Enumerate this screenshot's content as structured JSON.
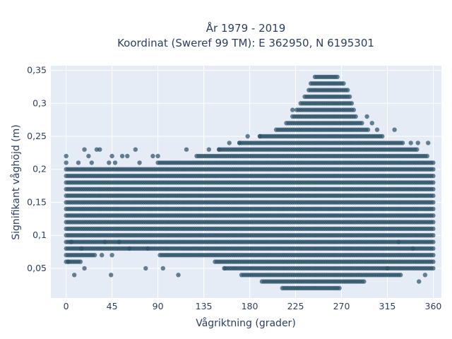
{
  "chart_data": {
    "type": "scatter",
    "title": "År 1979 - 2019",
    "subtitle": "Koordinat (Sweref 99 TM): E 362950, N 6195301",
    "xlabel": "Vågriktning (grader)",
    "ylabel": "Signifikant våghöjd (m)",
    "xlim": [
      -15,
      368
    ],
    "ylim": [
      0.005,
      0.357
    ],
    "xticks": [
      0,
      45,
      90,
      135,
      180,
      225,
      270,
      315,
      360
    ],
    "xtick_labels": [
      "0",
      "45",
      "90",
      "135",
      "180",
      "225",
      "270",
      "315",
      "360"
    ],
    "yticks": [
      0.05,
      0.1,
      0.15,
      0.2,
      0.25,
      0.3,
      0.35
    ],
    "ytick_labels": [
      "0,05",
      "0,1",
      "0,15",
      "0,2",
      "0,25",
      "0,3",
      "0,35"
    ],
    "grid": true,
    "marker_color": "#2e5266",
    "background_color": "#e5ecf6",
    "y_step": 0.01,
    "x_step": 2,
    "density_envelope": {
      "direction": [
        0,
        10,
        20,
        40,
        60,
        80,
        100,
        120,
        140,
        160,
        180,
        200,
        220,
        235,
        245,
        255,
        265,
        275,
        285,
        300,
        320,
        340,
        360
      ],
      "hs_min": [
        0.06,
        0.06,
        0.07,
        0.08,
        0.08,
        0.08,
        0.07,
        0.07,
        0.07,
        0.05,
        0.04,
        0.03,
        0.02,
        0.02,
        0.02,
        0.02,
        0.02,
        0.03,
        0.03,
        0.04,
        0.04,
        0.05,
        0.05
      ],
      "hs_max": [
        0.2,
        0.2,
        0.2,
        0.2,
        0.2,
        0.2,
        0.21,
        0.21,
        0.22,
        0.23,
        0.24,
        0.25,
        0.27,
        0.31,
        0.34,
        0.34,
        0.34,
        0.32,
        0.27,
        0.25,
        0.24,
        0.23,
        0.21
      ]
    },
    "outliers": [
      {
        "x": 0,
        "y": 0.22
      },
      {
        "x": 0,
        "y": 0.21
      },
      {
        "x": 2,
        "y": 0.06
      },
      {
        "x": 5,
        "y": 0.09
      },
      {
        "x": 8,
        "y": 0.04
      },
      {
        "x": 12,
        "y": 0.21
      },
      {
        "x": 15,
        "y": 0.08
      },
      {
        "x": 18,
        "y": 0.23
      },
      {
        "x": 18,
        "y": 0.05
      },
      {
        "x": 22,
        "y": 0.22
      },
      {
        "x": 25,
        "y": 0.21
      },
      {
        "x": 30,
        "y": 0.23
      },
      {
        "x": 33,
        "y": 0.23
      },
      {
        "x": 35,
        "y": 0.07
      },
      {
        "x": 38,
        "y": 0.09
      },
      {
        "x": 42,
        "y": 0.21
      },
      {
        "x": 44,
        "y": 0.04
      },
      {
        "x": 45,
        "y": 0.22
      },
      {
        "x": 45,
        "y": 0.07
      },
      {
        "x": 48,
        "y": 0.21
      },
      {
        "x": 52,
        "y": 0.09
      },
      {
        "x": 55,
        "y": 0.22
      },
      {
        "x": 60,
        "y": 0.22
      },
      {
        "x": 62,
        "y": 0.08
      },
      {
        "x": 68,
        "y": 0.23
      },
      {
        "x": 72,
        "y": 0.21
      },
      {
        "x": 78,
        "y": 0.05
      },
      {
        "x": 80,
        "y": 0.08
      },
      {
        "x": 85,
        "y": 0.22
      },
      {
        "x": 90,
        "y": 0.22
      },
      {
        "x": 95,
        "y": 0.05
      },
      {
        "x": 110,
        "y": 0.04
      },
      {
        "x": 118,
        "y": 0.23
      },
      {
        "x": 128,
        "y": 0.22
      },
      {
        "x": 140,
        "y": 0.23
      },
      {
        "x": 150,
        "y": 0.23
      },
      {
        "x": 155,
        "y": 0.05
      },
      {
        "x": 160,
        "y": 0.24
      },
      {
        "x": 170,
        "y": 0.24
      },
      {
        "x": 178,
        "y": 0.25
      },
      {
        "x": 190,
        "y": 0.25
      },
      {
        "x": 222,
        "y": 0.29
      },
      {
        "x": 290,
        "y": 0.27
      },
      {
        "x": 295,
        "y": 0.28
      },
      {
        "x": 300,
        "y": 0.27
      },
      {
        "x": 305,
        "y": 0.26
      },
      {
        "x": 322,
        "y": 0.26
      },
      {
        "x": 338,
        "y": 0.24
      },
      {
        "x": 345,
        "y": 0.24
      },
      {
        "x": 355,
        "y": 0.24
      },
      {
        "x": 346,
        "y": 0.03
      },
      {
        "x": 352,
        "y": 0.04
      },
      {
        "x": 315,
        "y": 0.05
      },
      {
        "x": 340,
        "y": 0.08
      },
      {
        "x": 326,
        "y": 0.09
      }
    ]
  }
}
